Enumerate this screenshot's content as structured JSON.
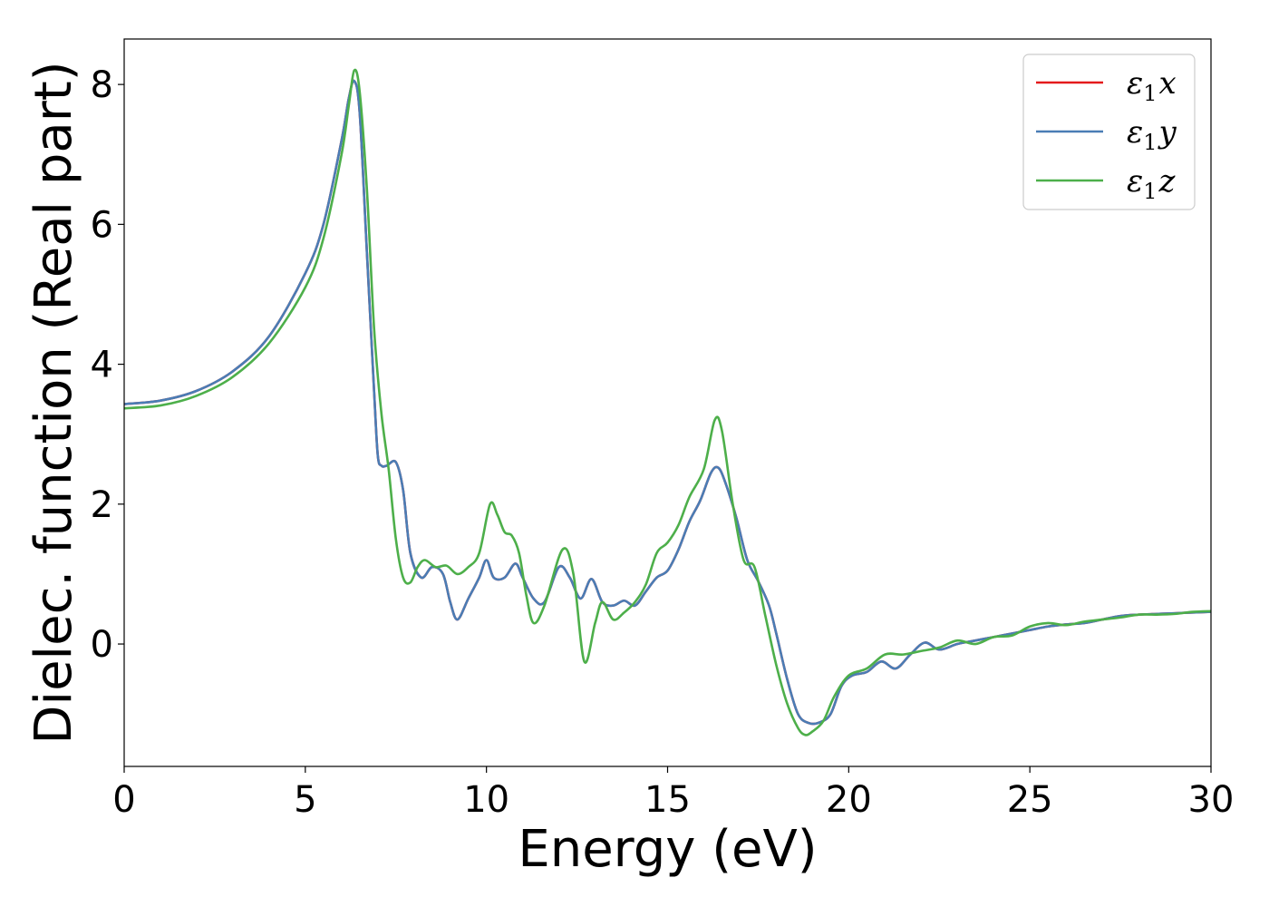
{
  "chart_data": {
    "type": "line",
    "xlabel": "Energy (eV)",
    "ylabel": "Dielec. function (Real part)",
    "xlim": [
      0,
      30
    ],
    "ylim": [
      -1.75,
      8.65
    ],
    "xticks": [
      0,
      5,
      10,
      15,
      20,
      25,
      30
    ],
    "yticks": [
      0,
      2,
      4,
      6,
      8
    ],
    "xtick_labels": [
      "0",
      "5",
      "10",
      "15",
      "20",
      "25",
      "30"
    ],
    "ytick_labels": [
      "0",
      "2",
      "4",
      "6",
      "8"
    ],
    "grid": false,
    "legend_position": "top-right",
    "series": [
      {
        "name": "ε1x",
        "legend": {
          "base": "ε",
          "sub": "1",
          "tail": "x"
        },
        "color": "#e41a1c",
        "x": [
          0,
          1,
          2,
          3,
          4,
          5,
          5.5,
          6,
          6.2,
          6.35,
          6.5,
          6.7,
          6.9,
          7.0,
          7.1,
          7.25,
          7.5,
          7.7,
          7.9,
          8.2,
          8.5,
          8.8,
          9.0,
          9.2,
          9.5,
          9.8,
          10.0,
          10.2,
          10.5,
          10.8,
          11.0,
          11.3,
          11.6,
          12.0,
          12.3,
          12.6,
          12.9,
          13.2,
          13.5,
          13.8,
          14.1,
          14.4,
          14.7,
          15.0,
          15.3,
          15.6,
          15.9,
          16.2,
          16.4,
          16.6,
          16.9,
          17.2,
          17.5,
          17.8,
          18.0,
          18.3,
          18.6,
          18.9,
          19.2,
          19.5,
          19.8,
          20.1,
          20.5,
          20.9,
          21.3,
          21.7,
          22.1,
          22.5,
          23.0,
          23.5,
          24.0,
          24.5,
          25.0,
          25.5,
          26.0,
          26.5,
          27.0,
          27.5,
          28.0,
          28.5,
          29.0,
          29.5,
          30.0
        ],
        "y": [
          3.43,
          3.48,
          3.62,
          3.9,
          4.4,
          5.3,
          6.0,
          7.2,
          7.8,
          8.05,
          7.6,
          5.6,
          3.6,
          2.7,
          2.55,
          2.55,
          2.6,
          2.2,
          1.3,
          0.95,
          1.1,
          1.0,
          0.6,
          0.35,
          0.65,
          0.95,
          1.2,
          0.95,
          0.95,
          1.15,
          0.95,
          0.65,
          0.6,
          1.1,
          0.95,
          0.65,
          0.93,
          0.6,
          0.55,
          0.62,
          0.55,
          0.75,
          0.95,
          1.05,
          1.35,
          1.75,
          2.05,
          2.45,
          2.52,
          2.3,
          1.8,
          1.2,
          0.9,
          0.55,
          0.15,
          -0.5,
          -1.0,
          -1.13,
          -1.12,
          -1.0,
          -0.6,
          -0.45,
          -0.4,
          -0.25,
          -0.35,
          -0.15,
          0.02,
          -0.08,
          0.0,
          0.05,
          0.1,
          0.15,
          0.2,
          0.25,
          0.28,
          0.3,
          0.35,
          0.4,
          0.42,
          0.43,
          0.44,
          0.45,
          0.46
        ]
      },
      {
        "name": "ε1y",
        "legend": {
          "base": "ε",
          "sub": "1",
          "tail": "y"
        },
        "color": "#4a7db5",
        "x": [
          0,
          1,
          2,
          3,
          4,
          5,
          5.5,
          6,
          6.2,
          6.35,
          6.5,
          6.7,
          6.9,
          7.0,
          7.1,
          7.25,
          7.5,
          7.7,
          7.9,
          8.2,
          8.5,
          8.8,
          9.0,
          9.2,
          9.5,
          9.8,
          10.0,
          10.2,
          10.5,
          10.8,
          11.0,
          11.3,
          11.6,
          12.0,
          12.3,
          12.6,
          12.9,
          13.2,
          13.5,
          13.8,
          14.1,
          14.4,
          14.7,
          15.0,
          15.3,
          15.6,
          15.9,
          16.2,
          16.4,
          16.6,
          16.9,
          17.2,
          17.5,
          17.8,
          18.0,
          18.3,
          18.6,
          18.9,
          19.2,
          19.5,
          19.8,
          20.1,
          20.5,
          20.9,
          21.3,
          21.7,
          22.1,
          22.5,
          23.0,
          23.5,
          24.0,
          24.5,
          25.0,
          25.5,
          26.0,
          26.5,
          27.0,
          27.5,
          28.0,
          28.5,
          29.0,
          29.5,
          30.0
        ],
        "y": [
          3.43,
          3.48,
          3.62,
          3.9,
          4.4,
          5.3,
          6.0,
          7.2,
          7.8,
          8.05,
          7.6,
          5.6,
          3.6,
          2.7,
          2.55,
          2.55,
          2.6,
          2.2,
          1.3,
          0.95,
          1.1,
          1.0,
          0.6,
          0.35,
          0.65,
          0.95,
          1.2,
          0.95,
          0.95,
          1.15,
          0.95,
          0.65,
          0.6,
          1.1,
          0.95,
          0.65,
          0.93,
          0.6,
          0.55,
          0.62,
          0.55,
          0.75,
          0.95,
          1.05,
          1.35,
          1.75,
          2.05,
          2.45,
          2.52,
          2.3,
          1.8,
          1.2,
          0.9,
          0.55,
          0.15,
          -0.5,
          -1.0,
          -1.13,
          -1.12,
          -1.0,
          -0.6,
          -0.45,
          -0.4,
          -0.25,
          -0.35,
          -0.15,
          0.02,
          -0.08,
          0.0,
          0.05,
          0.1,
          0.15,
          0.2,
          0.25,
          0.28,
          0.3,
          0.35,
          0.4,
          0.42,
          0.43,
          0.44,
          0.45,
          0.46
        ]
      },
      {
        "name": "ε1z",
        "legend": {
          "base": "ε",
          "sub": "1",
          "tail": "z"
        },
        "color": "#4daf4a",
        "x": [
          0,
          1,
          2,
          3,
          4,
          5,
          5.5,
          6,
          6.2,
          6.35,
          6.5,
          6.7,
          6.9,
          7.1,
          7.3,
          7.5,
          7.7,
          7.9,
          8.1,
          8.3,
          8.6,
          8.9,
          9.2,
          9.5,
          9.8,
          10.1,
          10.3,
          10.5,
          10.7,
          10.9,
          11.1,
          11.3,
          11.6,
          12.1,
          12.4,
          12.7,
          13.0,
          13.2,
          13.5,
          13.8,
          14.1,
          14.4,
          14.7,
          15.0,
          15.3,
          15.6,
          16.0,
          16.3,
          16.5,
          16.8,
          17.1,
          17.4,
          17.7,
          18.0,
          18.3,
          18.6,
          18.8,
          19.0,
          19.3,
          19.6,
          20.0,
          20.5,
          21.0,
          21.5,
          22.0,
          22.5,
          23.0,
          23.5,
          24.0,
          24.5,
          25.0,
          25.5,
          26.0,
          26.5,
          27.0,
          27.5,
          28.0,
          28.5,
          29.0,
          29.5,
          30.0
        ],
        "y": [
          3.37,
          3.41,
          3.55,
          3.82,
          4.3,
          5.1,
          5.8,
          7.0,
          7.7,
          8.2,
          7.9,
          6.5,
          4.5,
          3.3,
          2.5,
          1.5,
          0.95,
          0.88,
          1.1,
          1.2,
          1.1,
          1.12,
          1.0,
          1.1,
          1.3,
          2.0,
          1.85,
          1.6,
          1.55,
          1.3,
          0.7,
          0.3,
          0.55,
          1.35,
          1.0,
          -0.25,
          0.3,
          0.6,
          0.35,
          0.45,
          0.6,
          0.85,
          1.3,
          1.45,
          1.7,
          2.1,
          2.5,
          3.2,
          3.05,
          2.0,
          1.2,
          1.1,
          0.4,
          -0.3,
          -0.85,
          -1.2,
          -1.3,
          -1.25,
          -1.1,
          -0.75,
          -0.45,
          -0.35,
          -0.15,
          -0.15,
          -0.1,
          -0.05,
          0.05,
          0.0,
          0.1,
          0.12,
          0.25,
          0.3,
          0.27,
          0.32,
          0.35,
          0.38,
          0.42,
          0.42,
          0.43,
          0.46,
          0.47
        ]
      }
    ]
  }
}
